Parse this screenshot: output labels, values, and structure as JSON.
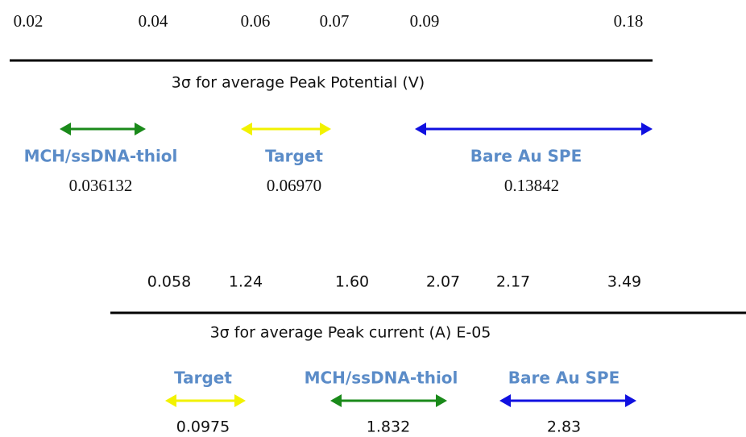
{
  "panels": [
    {
      "ticks": [
        "0.02",
        "0.04",
        "0.06",
        "0.07",
        "0.09",
        "0.18"
      ],
      "axis_label": "3σ for average Peak Potential (V)",
      "ranges": [
        {
          "label": "MCH/ssDNA-thiol",
          "value": "0.036132"
        },
        {
          "label": "Target",
          "value": "0.06970"
        },
        {
          "label": "Bare Au SPE",
          "value": "0.13842"
        }
      ]
    },
    {
      "ticks": [
        "0.058",
        "1.24",
        "1.60",
        "2.07",
        "2.17",
        "3.49"
      ],
      "axis_label": "3σ for average Peak current (A) E-05",
      "ranges": [
        {
          "label": "Target",
          "value": "0.0975"
        },
        {
          "label": "MCH/ssDNA-thiol",
          "value": "1.832"
        },
        {
          "label": "Bare Au SPE",
          "value": "2.83"
        }
      ]
    }
  ]
}
